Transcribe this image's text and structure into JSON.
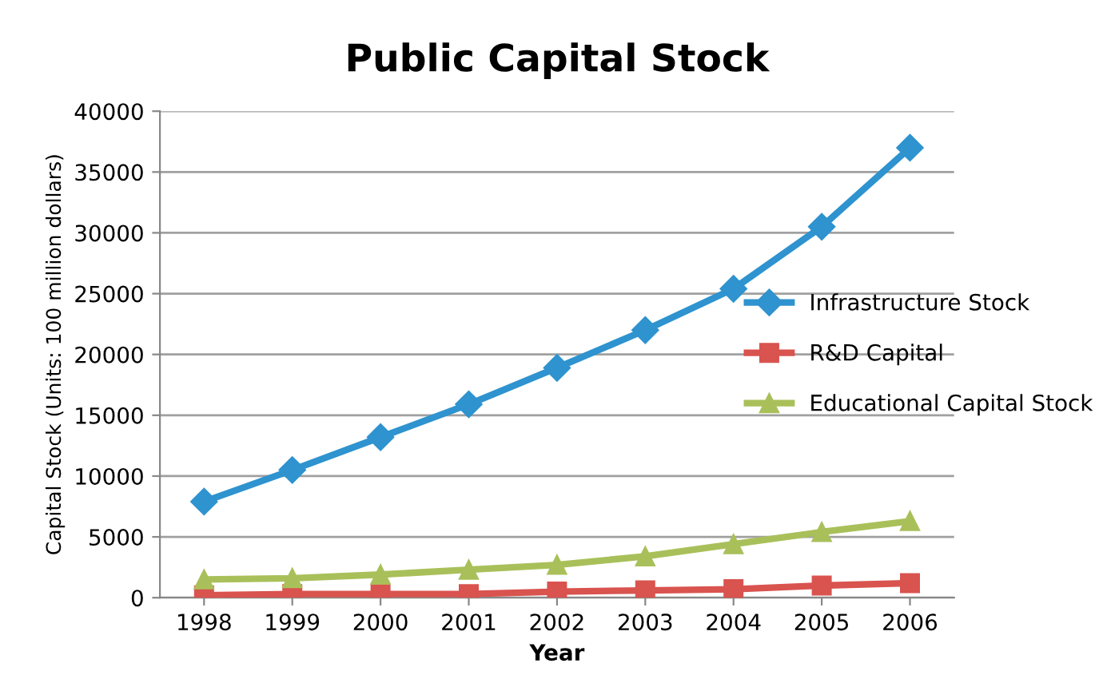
{
  "chart_data": {
    "type": "line",
    "title": "Public Capital Stock",
    "xlabel": "Year",
    "ylabel": "Capital Stock (Units: 100 million dollars)",
    "categories": [
      "1998",
      "1999",
      "2000",
      "2001",
      "2002",
      "2003",
      "2004",
      "2005",
      "2006"
    ],
    "series": [
      {
        "name": "Infrastructure Stock",
        "color": "#2e93cf",
        "marker": "diamond",
        "values": [
          7900,
          10500,
          13200,
          15900,
          18900,
          22000,
          25400,
          30500,
          37000
        ]
      },
      {
        "name": "R&D Capital",
        "color": "#d9534f",
        "marker": "square",
        "values": [
          200,
          300,
          300,
          300,
          500,
          600,
          700,
          1000,
          1200
        ]
      },
      {
        "name": "Educational Capital Stock",
        "color": "#a9c05a",
        "marker": "triangle",
        "values": [
          1500,
          1600,
          1900,
          2300,
          2700,
          3400,
          4400,
          5400,
          6300
        ]
      }
    ],
    "ylim": [
      0,
      40000
    ],
    "yticks": [
      0,
      5000,
      10000,
      15000,
      20000,
      25000,
      30000,
      35000,
      40000
    ],
    "grid": "y",
    "legend": "right"
  }
}
